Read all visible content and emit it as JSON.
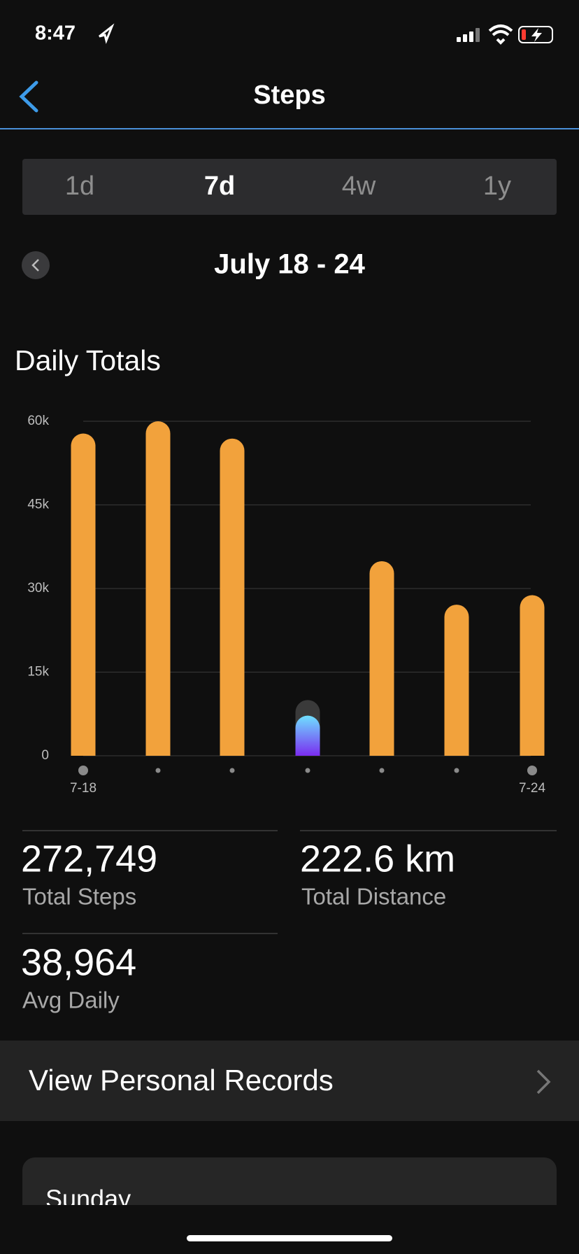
{
  "status_bar": {
    "time": "8:47"
  },
  "header": {
    "title": "Steps"
  },
  "tabs": {
    "items": [
      "1d",
      "7d",
      "4w",
      "1y"
    ],
    "selected": 1
  },
  "date_range": "July 18 - 24",
  "chart_data": {
    "type": "bar",
    "title": "Daily Totals",
    "categories": [
      "7-18",
      null,
      null,
      null,
      null,
      null,
      "7-24"
    ],
    "values": [
      57800,
      60000,
      56900,
      7200,
      34900,
      27100,
      28800
    ],
    "color": "#f2a23c",
    "in_progress_index": 3,
    "in_progress_goal": 10000,
    "in_progress_colors": [
      "#6fe0ff",
      "#7a2cf0"
    ],
    "ylim": [
      0,
      60000
    ],
    "yticks": [
      0,
      {
        "value": 15000,
        "label": "15k"
      },
      {
        "value": 30000,
        "label": "30k"
      },
      {
        "value": 45000,
        "label": "45k"
      },
      {
        "value": 60000,
        "label": "60k"
      }
    ],
    "grid": true
  },
  "stats": [
    {
      "value": "272,749",
      "label": "Total Steps"
    },
    {
      "value": "222.6 km",
      "label": "Total Distance"
    },
    {
      "value": "38,964",
      "label": "Avg Daily"
    }
  ],
  "records_link": "View Personal Records",
  "day_card": {
    "title": "Sunday"
  }
}
